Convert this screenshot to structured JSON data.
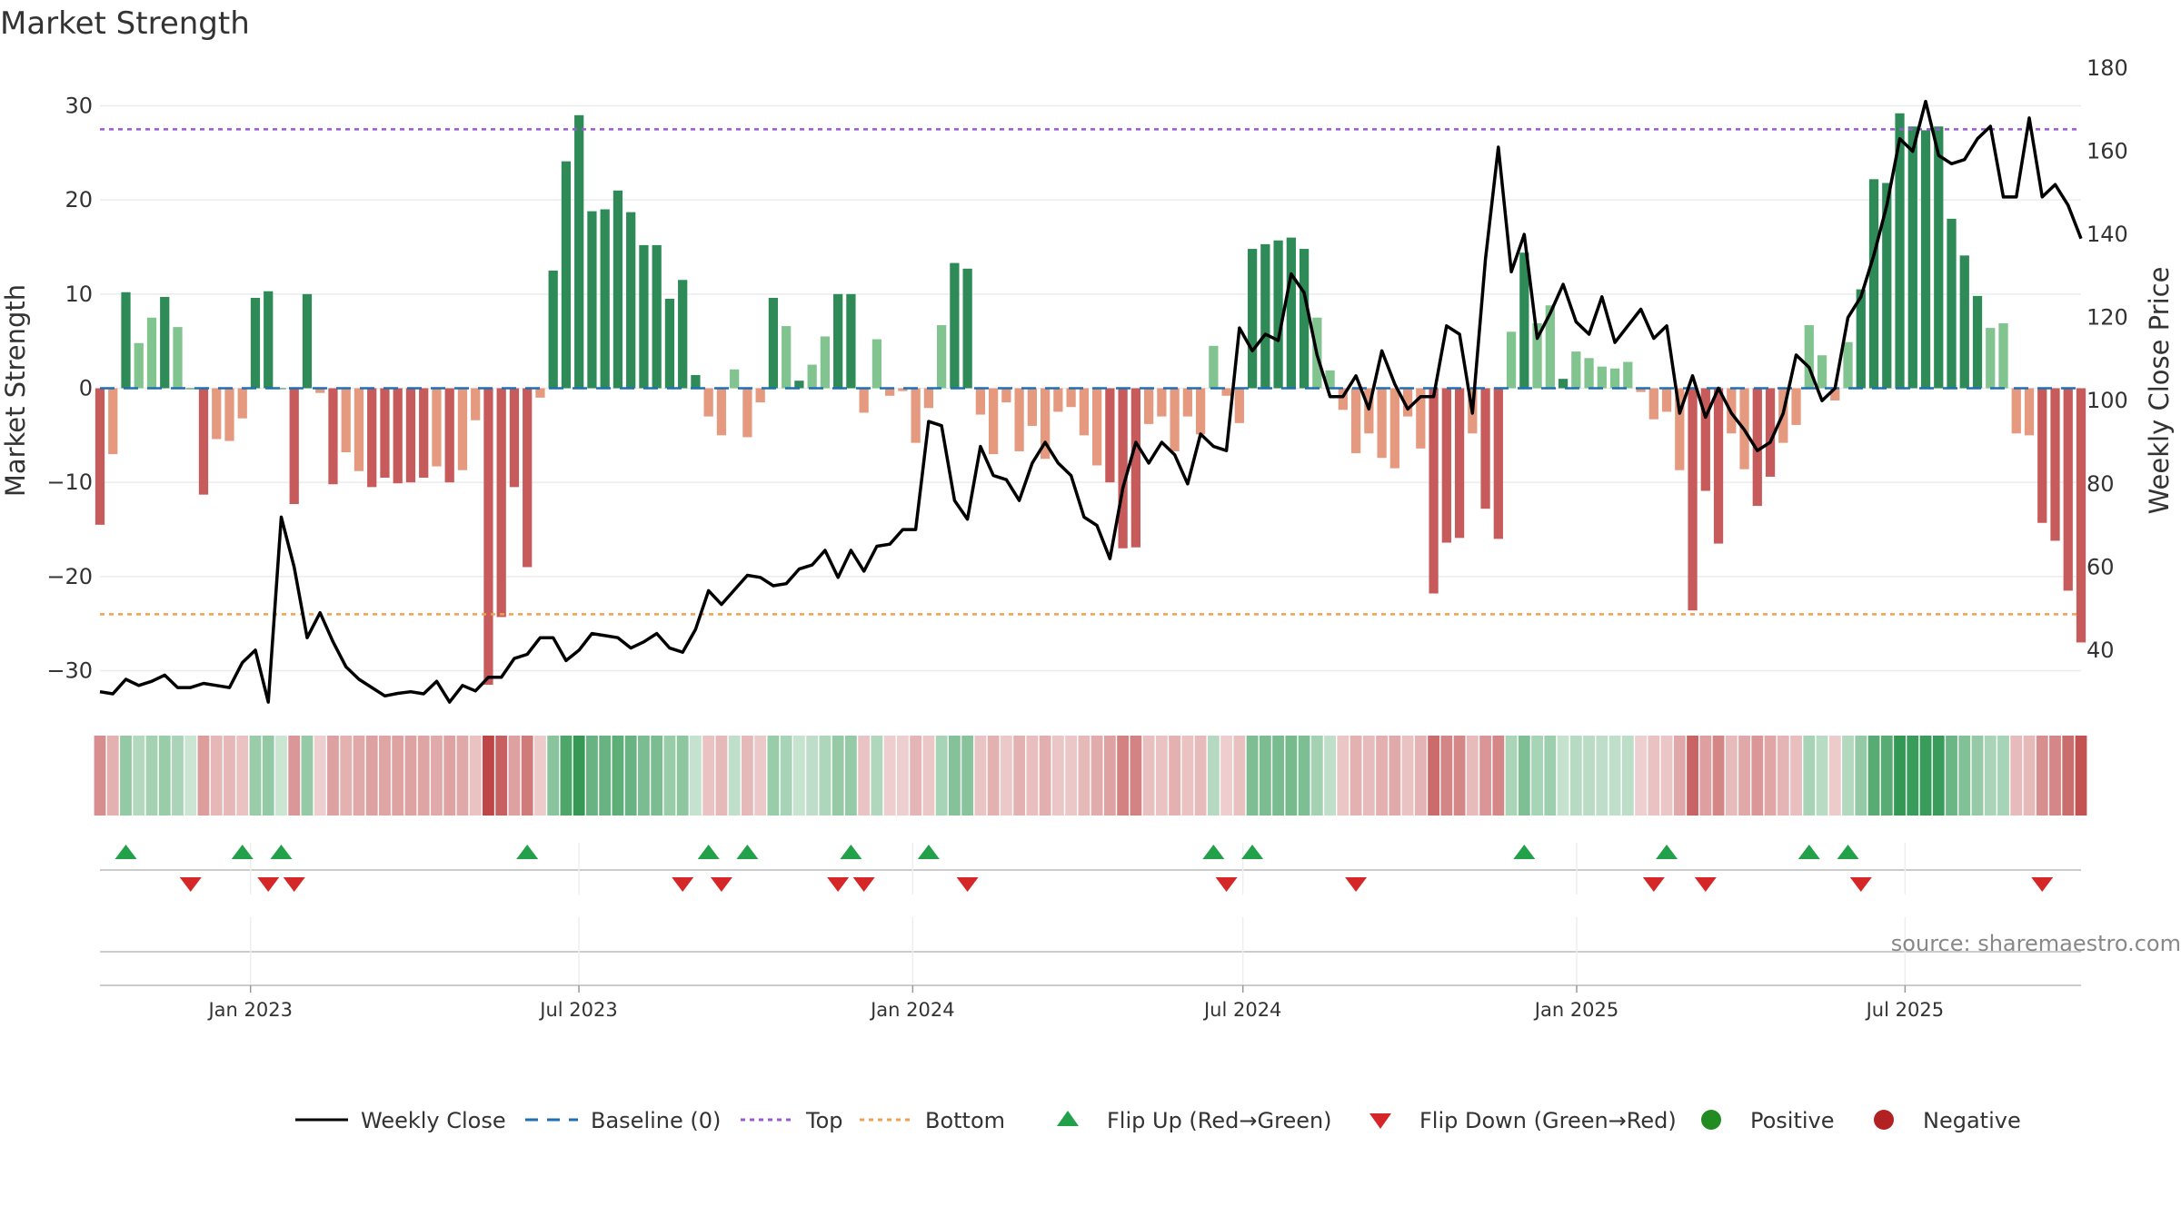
{
  "chart_data": {
    "type": "bar",
    "title": "Market Strength",
    "ylabel": "Market Strength",
    "y2label": "Weekly Close Price",
    "ylim": [
      -34,
      34
    ],
    "y2lim": [
      26,
      180
    ],
    "yticks": [
      30,
      20,
      10,
      0,
      -10,
      -20,
      -30
    ],
    "ytick_labels": [
      "30",
      "20",
      "10",
      "0",
      "−10",
      "−20",
      "−30"
    ],
    "y2ticks": [
      180,
      160,
      140,
      120,
      100,
      80,
      60,
      40
    ],
    "start_date": "2022-10-10",
    "end_date": "2025-10-06",
    "x_ticks": [
      {
        "date": "2023-01-01",
        "label": "Jan 2023"
      },
      {
        "date": "2023-07-01",
        "label": "Jul 2023"
      },
      {
        "date": "2024-01-01",
        "label": "Jan 2024"
      },
      {
        "date": "2024-07-01",
        "label": "Jul 2024"
      },
      {
        "date": "2025-01-01",
        "label": "Jan 2025"
      },
      {
        "date": "2025-07-01",
        "label": "Jul 2025"
      }
    ],
    "top_line": 27.5,
    "bottom_line": -24,
    "strength": [
      -14.5,
      -7,
      10.2,
      4.8,
      7.5,
      9.7,
      6.5,
      0,
      -11.3,
      -5.4,
      -5.6,
      -3.2,
      9.6,
      10.3,
      0,
      -12.3,
      10,
      -0.5,
      -10.2,
      -6.8,
      -8.8,
      -10.5,
      -9.5,
      -10.1,
      -10,
      -9.5,
      -8.3,
      -10,
      -8.7,
      -3.4,
      -31.5,
      -24.3,
      -10.5,
      -19,
      -1,
      12.5,
      24.1,
      29,
      18.8,
      19,
      21,
      18.7,
      15.2,
      15.2,
      9.5,
      11.5,
      1.4,
      -3,
      -5,
      2,
      -5.2,
      -1.5,
      9.6,
      6.6,
      0.8,
      2.5,
      5.5,
      10,
      10,
      -2.6,
      5.2,
      -0.8,
      -0.3,
      -5.8,
      -2.1,
      6.7,
      13.3,
      12.7,
      -2.8,
      -7,
      -1.5,
      -6.7,
      -4,
      -7.5,
      -2.5,
      -2,
      -5,
      -8.2,
      -10,
      -17,
      -16.9,
      -3.8,
      -3,
      -6.7,
      -3,
      -4.9,
      4.5,
      -0.8,
      -3.7,
      14.8,
      15.3,
      15.7,
      16,
      14.8,
      7.5,
      1.9,
      -2.3,
      -6.9,
      -4.8,
      -7.4,
      -8.5,
      -3,
      -6.4,
      -21.8,
      -16.4,
      -15.9,
      -4.8,
      -12.8,
      -16,
      6,
      14.4,
      6.9,
      8.8,
      1,
      3.9,
      3.2,
      2.3,
      2.1,
      2.8,
      -0.4,
      -3.3,
      -2.5,
      -8.7,
      -23.6,
      -10.9,
      -16.5,
      -4.8,
      -8.6,
      -12.5,
      -9.4,
      -5.8,
      -3.9,
      6.7,
      3.5,
      -1.3,
      4.9,
      10.5,
      22.2,
      21.8,
      29.2,
      27.8,
      27.4,
      27.8,
      18,
      14.1,
      9.8,
      6.4,
      6.9,
      -4.8,
      -5,
      -14.3,
      -16.2,
      -21.5,
      -27
    ],
    "close": [
      30,
      29.5,
      33,
      31.5,
      32.5,
      34,
      31,
      31,
      32,
      31.5,
      31,
      37,
      40,
      27.5,
      72,
      60,
      43,
      49,
      42,
      36,
      33,
      31,
      29,
      29.6,
      30,
      29.5,
      32.5,
      27.5,
      31.5,
      30.2,
      33.5,
      33.5,
      38,
      39,
      43,
      43,
      37.5,
      40,
      44,
      43.5,
      43,
      40.5,
      42,
      44,
      40.5,
      39.5,
      45,
      54.3,
      51,
      54.5,
      58,
      57.5,
      55.5,
      56,
      59.5,
      60.5,
      64,
      57.5,
      64,
      59,
      65,
      65.5,
      69,
      69,
      95,
      94,
      76,
      71.5,
      89,
      82,
      81,
      76,
      85,
      90,
      85,
      82,
      72,
      70,
      62,
      79,
      90,
      85,
      90,
      87,
      80,
      92,
      89,
      88,
      117.5,
      112,
      116,
      114.5,
      130.5,
      126,
      111,
      101,
      101,
      106,
      98,
      112,
      104,
      98,
      101,
      101,
      118,
      116,
      97,
      134,
      161,
      131,
      140,
      115,
      121,
      128,
      119,
      116,
      125,
      114,
      118,
      122,
      115,
      118,
      97,
      106,
      96,
      103,
      97,
      93,
      88,
      90,
      97,
      111,
      108,
      100,
      103,
      120,
      125,
      135,
      147,
      163,
      160,
      172,
      159,
      157,
      158,
      163,
      166,
      149,
      149,
      168,
      149,
      152,
      147,
      139
    ]
  },
  "strip": {
    "labels_note": ""
  },
  "flips": {
    "up": [
      2,
      11,
      14,
      33,
      47,
      50,
      58,
      64,
      86,
      89,
      110,
      121,
      132,
      135
    ],
    "down": [
      7,
      13,
      15,
      45,
      48,
      57,
      59,
      67,
      87,
      97,
      120,
      124,
      136,
      150
    ]
  },
  "colors": {
    "strong_green": "#2e8b57",
    "light_green": "#82c48f",
    "strong_red": "#c75b5b",
    "light_red": "#e59a7f",
    "line": "#000000",
    "baseline": "#1f6fb2",
    "top": "#9b59d0",
    "bottom": "#f0a050",
    "flip_up": "#22a04a",
    "flip_down": "#d62728",
    "positive": "#228b22",
    "negative": "#b22222"
  },
  "legend": [
    {
      "key": "weekly_close",
      "label": "Weekly Close"
    },
    {
      "key": "baseline",
      "label": "Baseline (0)"
    },
    {
      "key": "top",
      "label": "Top"
    },
    {
      "key": "bottom",
      "label": "Bottom"
    },
    {
      "key": "flip_up",
      "label": "Flip Up (Red→Green)"
    },
    {
      "key": "flip_down",
      "label": "Flip Down (Green→Red)"
    },
    {
      "key": "positive",
      "label": "Positive"
    },
    {
      "key": "negative",
      "label": "Negative"
    }
  ],
  "source": "source: sharemaestro.com"
}
